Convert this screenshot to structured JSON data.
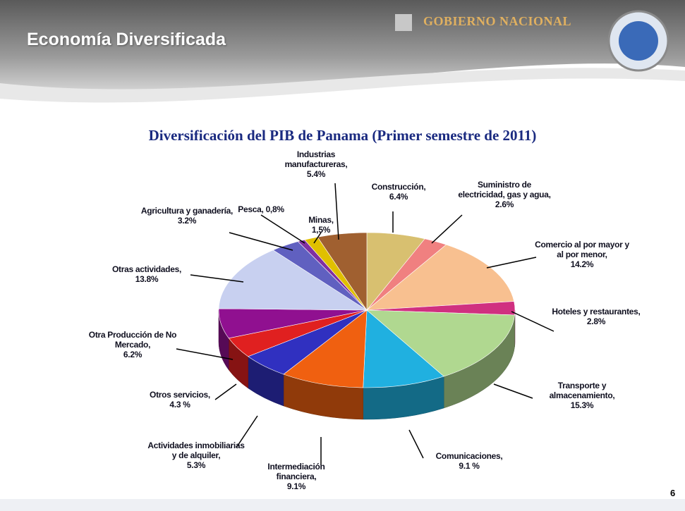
{
  "header": {
    "title": "Economía Diversificada",
    "logo_text": "GOBIERNO NACIONAL",
    "page_number": "6"
  },
  "chart_data": {
    "type": "pie",
    "title": "Diversificación del PIB de Panama (Primer semestre de 2011)",
    "categories": [
      "Construcción,",
      "Suministro de electricidad, gas y agua,",
      "Comercio al por mayor y al por menor,",
      "Hoteles y restaurantes,",
      "Transporte y almacenamiento,",
      "Comunicaciones,",
      "Intermediación financiera,",
      "Actividades inmobiliarias y de alquiler,",
      "Otros servicios,",
      "Otra Producción de No Mercado,",
      "Otras actividades,",
      "Agricultura y ganadería,",
      "Pesca,",
      "Minas,",
      "Industrias manufactureras,"
    ],
    "values": [
      6.4,
      2.6,
      14.2,
      2.8,
      15.3,
      9.1,
      9.1,
      5.3,
      4.3,
      6.2,
      13.8,
      3.2,
      0.8,
      1.5,
      5.4
    ],
    "value_labels": [
      "6.4%",
      "2.6%",
      "14.2%",
      "2.8%",
      "15.3%",
      "9.1 %",
      "9.1%",
      "5.3%",
      "4.3 %",
      "6.2%",
      "13.8%",
      "3.2%",
      "0,8%",
      "1,5%",
      "5.4%"
    ],
    "colors": [
      "#d8c070",
      "#f08080",
      "#f8c090",
      "#d03080",
      "#b0d890",
      "#20b0e0",
      "#f06010",
      "#3030c0",
      "#e02020",
      "#901090",
      "#c8d0f0",
      "#6060c0",
      "#8030a0",
      "#e0c000",
      "#a06030"
    ]
  }
}
